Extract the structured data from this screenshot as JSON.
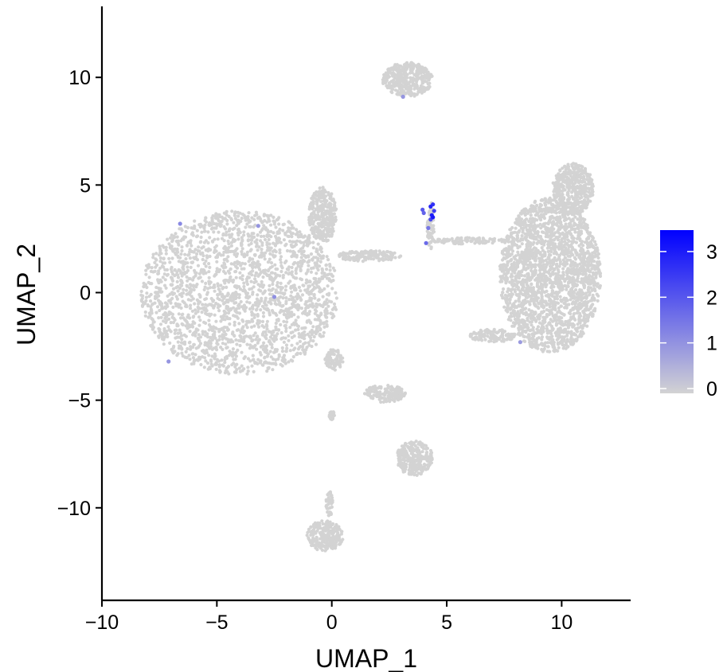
{
  "chart_data": {
    "type": "scatter",
    "title": "",
    "xlabel": "UMAP_1",
    "ylabel": "UMAP_2",
    "xlim": [
      -10,
      13
    ],
    "ylim": [
      -14.3,
      13.3
    ],
    "xticks": [
      -10,
      -5,
      0,
      5,
      10
    ],
    "xtick_labels": [
      "−10",
      "−5",
      "0",
      "5",
      "10"
    ],
    "yticks": [
      -10,
      -5,
      0,
      5,
      10
    ],
    "ytick_labels": [
      "−10",
      "−5",
      "0",
      "5",
      "10"
    ],
    "grid": false,
    "legend": {
      "type": "colorbar",
      "placement": "right",
      "min": 0,
      "max": 3.4,
      "ticks": [
        0,
        1,
        2,
        3
      ],
      "tick_labels": [
        "0",
        "1",
        "2",
        "3"
      ],
      "low_color": "#d3d3d3",
      "high_color": "#0000ff"
    },
    "clusters": [
      {
        "name": "large-left",
        "cx": -4.0,
        "cy": 0.0,
        "rx": 4.3,
        "ry": 3.8,
        "value": 0
      },
      {
        "name": "left-upper-lobe",
        "cx": -0.4,
        "cy": 3.6,
        "rx": 0.6,
        "ry": 1.3,
        "value": 0
      },
      {
        "name": "right-large",
        "cx": 9.5,
        "cy": 0.8,
        "rx": 2.2,
        "ry": 3.6,
        "value": 0
      },
      {
        "name": "right-upper-tip",
        "cx": 10.5,
        "cy": 4.8,
        "rx": 0.9,
        "ry": 1.2,
        "value": 0
      },
      {
        "name": "right-lower-arm",
        "cx": 7.0,
        "cy": -2.0,
        "rx": 1.0,
        "ry": 0.3,
        "value": 0
      },
      {
        "name": "bridge-left",
        "cx": 1.6,
        "cy": 1.7,
        "rx": 1.4,
        "ry": 0.25,
        "value": 0
      },
      {
        "name": "bridge-right",
        "cx": 6.0,
        "cy": 2.4,
        "rx": 1.6,
        "ry": 0.15,
        "value": 0
      },
      {
        "name": "top-cluster",
        "cx": 3.3,
        "cy": 9.9,
        "rx": 1.1,
        "ry": 0.8,
        "value": 0
      },
      {
        "name": "central-stalk",
        "cx": 4.3,
        "cy": 3.1,
        "rx": 0.15,
        "ry": 1.1,
        "value": 0
      },
      {
        "name": "mid-strand-a",
        "cx": 0.1,
        "cy": -3.1,
        "rx": 0.4,
        "ry": 0.5,
        "value": 0
      },
      {
        "name": "mid-strand-b",
        "cx": 2.3,
        "cy": -4.7,
        "rx": 0.9,
        "ry": 0.4,
        "value": 0
      },
      {
        "name": "small-mid",
        "cx": 0.0,
        "cy": -5.7,
        "rx": 0.12,
        "ry": 0.2,
        "value": 0
      },
      {
        "name": "lower-mid",
        "cx": 3.6,
        "cy": -7.7,
        "rx": 0.8,
        "ry": 0.8,
        "value": 0
      },
      {
        "name": "bottom",
        "cx": -0.3,
        "cy": -11.3,
        "rx": 0.8,
        "ry": 0.7,
        "value": 0
      },
      {
        "name": "bottom-stem",
        "cx": -0.1,
        "cy": -9.8,
        "rx": 0.15,
        "ry": 0.6,
        "value": 0
      }
    ],
    "highlighted_points": [
      {
        "x": 4.4,
        "y": 4.1,
        "value": 2.6
      },
      {
        "x": 4.3,
        "y": 4.0,
        "value": 2.8
      },
      {
        "x": 4.45,
        "y": 3.8,
        "value": 2.4
      },
      {
        "x": 4.35,
        "y": 3.6,
        "value": 2.9
      },
      {
        "x": 4.3,
        "y": 3.4,
        "value": 2.2
      },
      {
        "x": 4.4,
        "y": 3.5,
        "value": 3.0
      },
      {
        "x": 3.95,
        "y": 3.85,
        "value": 2.0
      },
      {
        "x": 4.0,
        "y": 3.7,
        "value": 1.8
      },
      {
        "x": 4.2,
        "y": 3.0,
        "value": 1.5
      },
      {
        "x": 4.1,
        "y": 2.3,
        "value": 1.7
      },
      {
        "x": -6.6,
        "y": 3.2,
        "value": 1.2
      },
      {
        "x": -7.1,
        "y": -3.2,
        "value": 1.0
      },
      {
        "x": -3.2,
        "y": 3.1,
        "value": 1.0
      },
      {
        "x": -2.5,
        "y": -0.2,
        "value": 1.1
      },
      {
        "x": 3.1,
        "y": 9.1,
        "value": 1.0
      },
      {
        "x": 8.2,
        "y": -2.3,
        "value": 0.9
      }
    ]
  }
}
